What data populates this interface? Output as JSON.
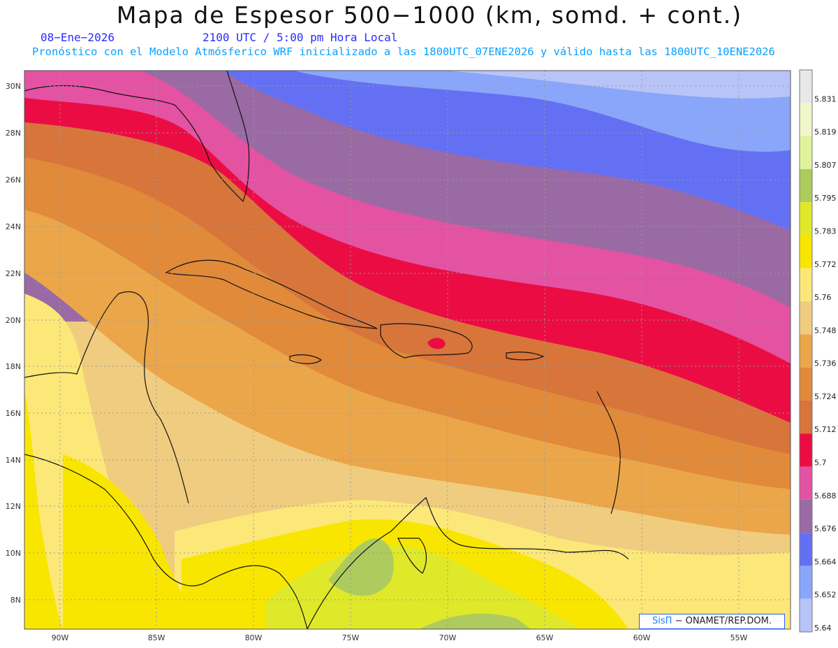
{
  "header": {
    "title": "Mapa de Espesor 500−1000 (km, somd. + cont.)",
    "date": "08−Ene−2026",
    "time": "2100 UTC / 5:00 pm Hora Local",
    "description": "Pronóstico con el Modelo Atmósferico WRF inicializado a las 1800UTC_07ENE2026 y válido hasta las  1800UTC_10ENE2026"
  },
  "map": {
    "lat_labels": [
      "30N",
      "28N",
      "26N",
      "24N",
      "22N",
      "20N",
      "18N",
      "16N",
      "14N",
      "12N",
      "10N",
      "8N"
    ],
    "lon_labels": [
      "90W",
      "85W",
      "80W",
      "75W",
      "70W",
      "65W",
      "60W",
      "55W"
    ]
  },
  "colorbar": {
    "levels": [
      "5.831",
      "5.819",
      "5.807",
      "5.795",
      "5.783",
      "5.772",
      "5.76",
      "5.748",
      "5.736",
      "5.724",
      "5.712",
      "5.7",
      "5.688",
      "5.676",
      "5.664",
      "5.652",
      "5.64"
    ],
    "colors": [
      "#e8e8e8",
      "#f1f6c8",
      "#e0f39a",
      "#aecb5e",
      "#e0e82a",
      "#f8e600",
      "#fce878",
      "#f0cc80",
      "#eba64a",
      "#e08a3a",
      "#d8753a",
      "#ec0c44",
      "#e452a2",
      "#9a6aa4",
      "#6470f4",
      "#8aa6fa",
      "#b8c4f8"
    ]
  },
  "credit": {
    "logo": "SisΠ",
    "text": "− ONAMET/REP.DOM."
  }
}
